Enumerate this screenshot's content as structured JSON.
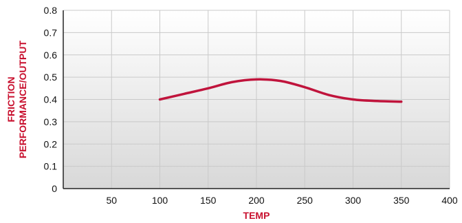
{
  "colors": {
    "series": "#c0143c",
    "axis_title": "#c8102e",
    "grid": "#c9c9c9",
    "plot_bg_top": "#ffffff",
    "plot_bg_bottom": "#d8d8d8",
    "axis_line": "#222222"
  },
  "chart_data": {
    "type": "line",
    "title": "",
    "xlabel": "TEMP",
    "ylabel_lines": [
      "FRICTION",
      "PERFORMANCE/OUTPUT"
    ],
    "xlim": [
      0,
      400
    ],
    "ylim": [
      0,
      0.8
    ],
    "x_ticks": [
      50,
      100,
      150,
      200,
      250,
      300,
      350,
      400
    ],
    "x_tick_labels": [
      "50",
      "100",
      "150",
      "200",
      "250",
      "300",
      "350",
      "400"
    ],
    "y_ticks": [
      0,
      0.1,
      0.2,
      0.3,
      0.4,
      0.5,
      0.6,
      0.7,
      0.8
    ],
    "y_tick_labels": [
      "0",
      "0.1",
      "0.2",
      "0.3",
      "0.4",
      "0.5",
      "0.6",
      "0.7",
      "0.8"
    ],
    "grid": true,
    "legend": "none",
    "series": [
      {
        "x": [
          100,
          125,
          150,
          175,
          200,
          225,
          250,
          275,
          300,
          325,
          350
        ],
        "values": [
          0.4,
          0.425,
          0.45,
          0.478,
          0.49,
          0.483,
          0.455,
          0.42,
          0.4,
          0.393,
          0.39
        ]
      }
    ]
  }
}
